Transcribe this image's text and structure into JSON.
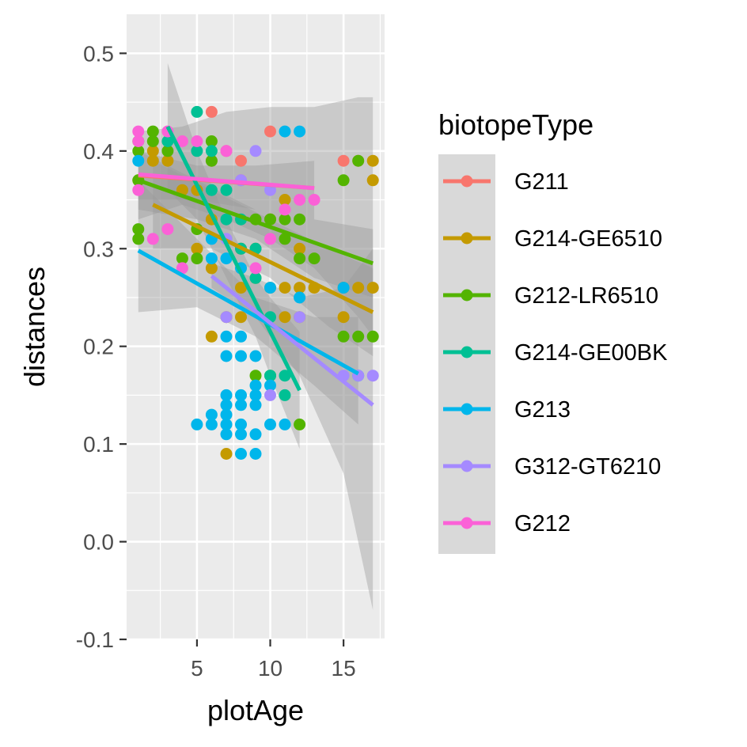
{
  "chart_data": {
    "type": "scatter",
    "xlabel": "plotAge",
    "ylabel": "distances",
    "xlim": [
      0.2,
      17.8
    ],
    "ylim": [
      -0.1,
      0.54
    ],
    "x_ticks": [
      5,
      10,
      15
    ],
    "x_tick_labels": [
      "5",
      "10",
      "15"
    ],
    "y_ticks": [
      -0.1,
      0.0,
      0.1,
      0.2,
      0.3,
      0.4,
      0.5
    ],
    "y_tick_labels": [
      "-0.1",
      "0.0",
      "0.1",
      "0.2",
      "0.3",
      "0.4",
      "0.5"
    ],
    "grid": true,
    "panel_background": "#ebebeb",
    "legend_position": "right",
    "legend_title": "biotopeType",
    "series": [
      {
        "name": "G211",
        "color": "#F8766D",
        "fit": {
          "x": [
            1,
            13
          ],
          "y": [
            0.375,
            0.362
          ]
        },
        "band": {
          "x": [
            1,
            4,
            7,
            10,
            13,
            16,
            17
          ],
          "lower": [
            0.33,
            0.345,
            0.33,
            0.31,
            0.28,
            0.23,
            0.21
          ],
          "upper": [
            0.42,
            0.425,
            0.44,
            0.445,
            0.445,
            0.455,
            0.455
          ]
        },
        "points": [
          [
            6,
            0.44
          ],
          [
            7,
            0.4
          ],
          [
            8,
            0.39
          ],
          [
            10,
            0.42
          ],
          [
            15,
            0.39
          ],
          [
            16,
            0.39
          ],
          [
            6,
            0.39
          ],
          [
            8,
            0.37
          ]
        ]
      },
      {
        "name": "G214-GE6510",
        "color": "#C49A00",
        "fit": {
          "x": [
            2,
            17
          ],
          "y": [
            0.345,
            0.235
          ]
        },
        "band": {
          "x": [
            2,
            6,
            10,
            14,
            17
          ],
          "lower": [
            0.3,
            0.3,
            0.27,
            0.22,
            0.19
          ],
          "upper": [
            0.39,
            0.36,
            0.33,
            0.3,
            0.28
          ]
        },
        "points": [
          [
            1,
            0.37
          ],
          [
            2,
            0.39
          ],
          [
            2,
            0.4
          ],
          [
            3,
            0.39
          ],
          [
            4,
            0.36
          ],
          [
            5,
            0.36
          ],
          [
            5,
            0.3
          ],
          [
            6,
            0.28
          ],
          [
            6,
            0.21
          ],
          [
            7,
            0.23
          ],
          [
            7,
            0.09
          ],
          [
            8,
            0.23
          ],
          [
            8,
            0.26
          ],
          [
            9,
            0.3
          ],
          [
            10,
            0.33
          ],
          [
            10,
            0.26
          ],
          [
            11,
            0.26
          ],
          [
            11,
            0.23
          ],
          [
            12,
            0.23
          ],
          [
            12,
            0.26
          ],
          [
            13,
            0.26
          ],
          [
            15,
            0.26
          ],
          [
            15,
            0.23
          ],
          [
            16,
            0.26
          ],
          [
            17,
            0.26
          ],
          [
            17,
            0.39
          ],
          [
            17,
            0.37
          ],
          [
            11,
            0.35
          ],
          [
            12,
            0.3
          ],
          [
            9,
            0.27
          ],
          [
            6,
            0.33
          ],
          [
            8,
            0.3
          ]
        ]
      },
      {
        "name": "G212-LR6510",
        "color": "#53B400",
        "fit": {
          "x": [
            1,
            17
          ],
          "y": [
            0.37,
            0.285
          ]
        },
        "band": {
          "x": [
            1,
            5,
            9,
            13,
            17
          ],
          "lower": [
            0.34,
            0.33,
            0.31,
            0.27,
            0.25
          ],
          "upper": [
            0.4,
            0.37,
            0.34,
            0.33,
            0.32
          ]
        },
        "points": [
          [
            1,
            0.32
          ],
          [
            1,
            0.31
          ],
          [
            1,
            0.37
          ],
          [
            1,
            0.4
          ],
          [
            1,
            0.41
          ],
          [
            2,
            0.42
          ],
          [
            2,
            0.41
          ],
          [
            3,
            0.4
          ],
          [
            4,
            0.29
          ],
          [
            5,
            0.29
          ],
          [
            5,
            0.32
          ],
          [
            6,
            0.41
          ],
          [
            6,
            0.39
          ],
          [
            9,
            0.33
          ],
          [
            10,
            0.33
          ],
          [
            11,
            0.33
          ],
          [
            12,
            0.33
          ],
          [
            12,
            0.29
          ],
          [
            13,
            0.29
          ],
          [
            15,
            0.37
          ],
          [
            15,
            0.21
          ],
          [
            16,
            0.21
          ],
          [
            16,
            0.39
          ],
          [
            17,
            0.21
          ],
          [
            9,
            0.17
          ],
          [
            10,
            0.17
          ],
          [
            12,
            0.12
          ],
          [
            11,
            0.31
          ]
        ]
      },
      {
        "name": "G214-GE00BK",
        "color": "#00C094",
        "fit": {
          "x": [
            3,
            12
          ],
          "y": [
            0.425,
            0.155
          ]
        },
        "band": {
          "x": [
            3,
            5,
            7,
            9,
            10,
            12
          ],
          "lower": [
            0.36,
            0.33,
            0.27,
            0.21,
            0.17,
            0.095
          ],
          "upper": [
            0.49,
            0.4,
            0.33,
            0.27,
            0.25,
            0.215
          ]
        },
        "points": [
          [
            3,
            0.41
          ],
          [
            5,
            0.44
          ],
          [
            5,
            0.4
          ],
          [
            6,
            0.4
          ],
          [
            6,
            0.36
          ],
          [
            7,
            0.36
          ],
          [
            7,
            0.33
          ],
          [
            8,
            0.33
          ],
          [
            8,
            0.3
          ],
          [
            9,
            0.3
          ],
          [
            9,
            0.27
          ],
          [
            10,
            0.23
          ],
          [
            10,
            0.17
          ],
          [
            11,
            0.17
          ],
          [
            11,
            0.15
          ]
        ]
      },
      {
        "name": "G213",
        "color": "#00B6EB",
        "fit": {
          "x": [
            1,
            16
          ],
          "y": [
            0.298,
            0.172
          ]
        },
        "band": {
          "x": [
            1,
            5,
            9,
            13,
            16
          ],
          "lower": [
            0.235,
            0.24,
            0.21,
            0.16,
            0.12
          ],
          "upper": [
            0.37,
            0.31,
            0.25,
            0.23,
            0.23
          ]
        },
        "points": [
          [
            1,
            0.39
          ],
          [
            5,
            0.12
          ],
          [
            6,
            0.12
          ],
          [
            6,
            0.13
          ],
          [
            6,
            0.29
          ],
          [
            6,
            0.31
          ],
          [
            7,
            0.21
          ],
          [
            7,
            0.19
          ],
          [
            7,
            0.15
          ],
          [
            7,
            0.14
          ],
          [
            7,
            0.13
          ],
          [
            7,
            0.12
          ],
          [
            7,
            0.11
          ],
          [
            8,
            0.21
          ],
          [
            8,
            0.19
          ],
          [
            8,
            0.15
          ],
          [
            8,
            0.14
          ],
          [
            8,
            0.12
          ],
          [
            8,
            0.11
          ],
          [
            8,
            0.09
          ],
          [
            9,
            0.11
          ],
          [
            9,
            0.09
          ],
          [
            9,
            0.19
          ],
          [
            9,
            0.16
          ],
          [
            9,
            0.15
          ],
          [
            9,
            0.14
          ],
          [
            10,
            0.12
          ],
          [
            10,
            0.16
          ],
          [
            10,
            0.26
          ],
          [
            11,
            0.12
          ],
          [
            11,
            0.42
          ],
          [
            12,
            0.42
          ],
          [
            12,
            0.25
          ],
          [
            15,
            0.26
          ],
          [
            16,
            0.17
          ],
          [
            7,
            0.29
          ],
          [
            8,
            0.28
          ]
        ]
      },
      {
        "name": "G312-GT6210",
        "color": "#A58AFF",
        "fit": {
          "x": [
            6,
            17
          ],
          "y": [
            0.272,
            0.14
          ]
        },
        "band": {
          "x": [
            6,
            9,
            12,
            15,
            17
          ],
          "lower": [
            0.26,
            0.23,
            0.17,
            0.07,
            -0.07
          ],
          "upper": [
            0.285,
            0.27,
            0.25,
            0.26,
            0.3
          ]
        },
        "points": [
          [
            7,
            0.31
          ],
          [
            8,
            0.37
          ],
          [
            9,
            0.4
          ],
          [
            10,
            0.15
          ],
          [
            12,
            0.23
          ],
          [
            15,
            0.17
          ],
          [
            16,
            0.17
          ],
          [
            17,
            0.17
          ],
          [
            10,
            0.36
          ],
          [
            7,
            0.23
          ]
        ]
      },
      {
        "name": "G212",
        "color": "#FB61D7",
        "fit": {
          "x": [
            1,
            13
          ],
          "y": [
            0.376,
            0.362
          ]
        },
        "band": {
          "x": [
            1,
            5,
            9,
            13
          ],
          "lower": [
            0.35,
            0.35,
            0.34,
            0.33
          ],
          "upper": [
            0.4,
            0.385,
            0.385,
            0.39
          ]
        },
        "points": [
          [
            1,
            0.42
          ],
          [
            1,
            0.41
          ],
          [
            1,
            0.36
          ],
          [
            2,
            0.31
          ],
          [
            3,
            0.42
          ],
          [
            3,
            0.32
          ],
          [
            4,
            0.41
          ],
          [
            5,
            0.41
          ],
          [
            4,
            0.28
          ],
          [
            12,
            0.35
          ],
          [
            13,
            0.35
          ],
          [
            11,
            0.34
          ],
          [
            10,
            0.31
          ],
          [
            9,
            0.28
          ],
          [
            7,
            0.4
          ]
        ]
      }
    ]
  }
}
